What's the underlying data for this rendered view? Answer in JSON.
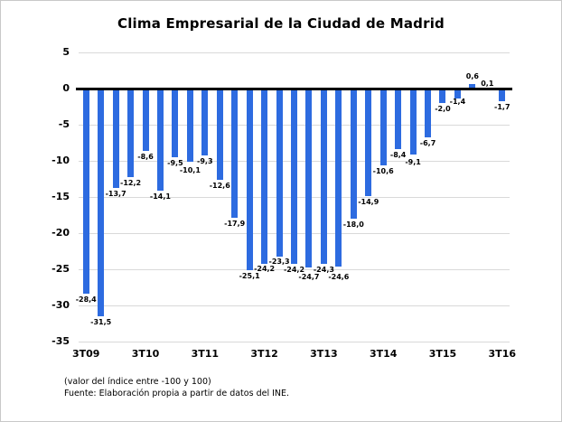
{
  "chart": {
    "title": "Clima Empresarial de la Ciudad de Madrid"
  },
  "chart_data": {
    "type": "bar",
    "title": "Clima Empresarial de la Ciudad de Madrid",
    "categories": [
      "3T09",
      "4T09",
      "1T10",
      "2T10",
      "3T10",
      "4T10",
      "1T11",
      "2T11",
      "3T11",
      "4T11",
      "1T12",
      "2T12",
      "3T12",
      "4T12",
      "1T13",
      "2T13",
      "3T13",
      "4T13",
      "1T14",
      "2T14",
      "3T14",
      "4T14",
      "1T15",
      "2T15",
      "3T15",
      "4T15",
      "1T16",
      "2T16",
      "3T16"
    ],
    "values": [
      -28.4,
      -31.5,
      -13.7,
      -12.2,
      -8.6,
      -14.1,
      -9.5,
      -10.1,
      -9.3,
      -12.6,
      -17.9,
      -25.1,
      -24.2,
      -23.3,
      -24.2,
      -24.7,
      -24.3,
      -24.6,
      -18.0,
      -14.9,
      -10.6,
      -8.4,
      -9.1,
      -6.7,
      -2.0,
      -1.4,
      0.6,
      0.1,
      -1.7
    ],
    "labels": [
      "-28,4",
      "-31,5",
      "-13,7",
      "-12,2",
      "-8,6",
      "-14,1",
      "-9,5",
      "-10,1",
      "-9,3",
      "-12,6",
      "-17,9",
      "-25,1",
      "-24,2",
      "-23,3",
      "-24,2",
      "-24,7",
      "-24,3",
      "-24,6",
      "-18,0",
      "-14,9",
      "-10,6",
      "-8,4",
      "-9,1",
      "-6,7",
      "-2,0",
      "-1,4",
      "0,6",
      "0,1",
      "-1,7"
    ],
    "x_tick_labels": [
      "3T09",
      "3T10",
      "3T11",
      "3T12",
      "3T13",
      "3T14",
      "3T15",
      "3T16"
    ],
    "x_tick_every": 4,
    "y_ticks": [
      5,
      0,
      -5,
      -10,
      -15,
      -20,
      -25,
      -30,
      -35
    ],
    "y_tick_labels": [
      "5",
      "0",
      "-5",
      "-10",
      "-15",
      "-20",
      "-25",
      "-30",
      "-35"
    ],
    "ylim": [
      -35,
      5
    ],
    "grid": true,
    "legend": "none",
    "bar_color": "#2D6BE0",
    "axis_color": "#000000",
    "gridline_color": "#D9D9D9"
  },
  "footer": {
    "note1": "(valor del índice entre -100 y 100)",
    "note2": "Fuente: Elaboración propia a partir de datos del INE."
  }
}
